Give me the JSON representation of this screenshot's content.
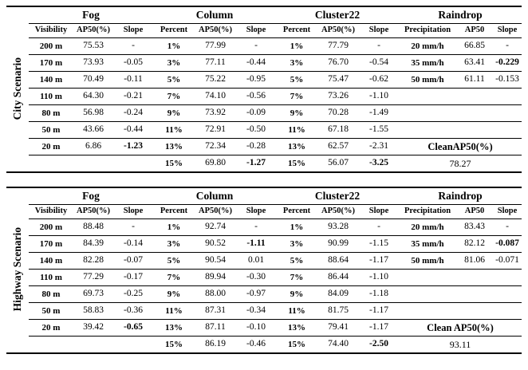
{
  "tables": [
    {
      "scenario": "City Scenario",
      "groups": [
        "Fog",
        "Column",
        "Cluster22",
        "Raindrop"
      ],
      "columns": [
        "Visibility",
        "AP50(%)",
        "Slope",
        "Percent",
        "AP50(%)",
        "Slope",
        "Percent",
        "AP50(%)",
        "Slope",
        "Precipitation",
        "AP50",
        "Slope"
      ],
      "rows": [
        [
          "200 m",
          "75.53",
          "-",
          "1%",
          "77.99",
          "-",
          "1%",
          "77.79",
          "-",
          "20 mm/h",
          "66.85",
          "-"
        ],
        [
          "170 m",
          "73.93",
          "-0.05",
          "3%",
          "77.11",
          "-0.44",
          "3%",
          "76.70",
          "-0.54",
          "35 mm/h",
          "63.41",
          {
            "t": "-0.229",
            "b": true
          }
        ],
        [
          "140 m",
          "70.49",
          "-0.11",
          "5%",
          "75.22",
          "-0.95",
          "5%",
          "75.47",
          "-0.62",
          "50 mm/h",
          "61.11",
          "-0.153"
        ],
        [
          "110 m",
          "64.30",
          "-0.21",
          "7%",
          "74.10",
          "-0.56",
          "7%",
          "73.26",
          "-1.10",
          "",
          "",
          ""
        ],
        [
          "80 m",
          "56.98",
          "-0.24",
          "9%",
          "73.92",
          "-0.09",
          "9%",
          "70.28",
          "-1.49",
          "",
          "",
          ""
        ],
        [
          "50 m",
          "43.66",
          "-0.44",
          "11%",
          "72.91",
          "-0.50",
          "11%",
          "67.18",
          "-1.55",
          "",
          "",
          ""
        ],
        [
          "20 m",
          "6.86",
          {
            "t": "-1.23",
            "b": true
          },
          "13%",
          "72.34",
          "-0.28",
          "13%",
          "62.57",
          "-2.31",
          {
            "t": "CleanAP50(%)",
            "b": true,
            "span": 3,
            "cls": "clean-label"
          }
        ],
        [
          "",
          "",
          "",
          "15%",
          "69.80",
          {
            "t": "-1.27",
            "b": true
          },
          "15%",
          "56.07",
          {
            "t": "-3.25",
            "b": true
          },
          {
            "t": "78.27",
            "span": 3,
            "cls": "clean-value"
          }
        ]
      ]
    },
    {
      "scenario": "Highway Scenario",
      "groups": [
        "Fog",
        "Column",
        "Cluster22",
        "Raindrop"
      ],
      "columns": [
        "Visibility",
        "AP50(%)",
        "Slope",
        "Percent",
        "AP50(%)",
        "Slope",
        "Percent",
        "AP50(%)",
        "Slope",
        "Precipitation",
        "AP50",
        "Slope"
      ],
      "rows": [
        [
          "200 m",
          "88.48",
          "-",
          "1%",
          "92.74",
          "-",
          "1%",
          "93.28",
          "-",
          "20 mm/h",
          "83.43",
          "-"
        ],
        [
          "170 m",
          "84.39",
          "-0.14",
          "3%",
          "90.52",
          {
            "t": "-1.11",
            "b": true
          },
          "3%",
          "90.99",
          "-1.15",
          "35 mm/h",
          "82.12",
          {
            "t": "-0.087",
            "b": true
          }
        ],
        [
          "140 m",
          "82.28",
          "-0.07",
          "5%",
          "90.54",
          "0.01",
          "5%",
          "88.64",
          "-1.17",
          "50 mm/h",
          "81.06",
          "-0.071"
        ],
        [
          "110 m",
          "77.29",
          "-0.17",
          "7%",
          "89.94",
          "-0.30",
          "7%",
          "86.44",
          "-1.10",
          "",
          "",
          ""
        ],
        [
          "80 m",
          "69.73",
          "-0.25",
          "9%",
          "88.00",
          "-0.97",
          "9%",
          "84.09",
          "-1.18",
          "",
          "",
          ""
        ],
        [
          "50 m",
          "58.83",
          "-0.36",
          "11%",
          "87.31",
          "-0.34",
          "11%",
          "81.75",
          "-1.17",
          "",
          "",
          ""
        ],
        [
          "20 m",
          "39.42",
          {
            "t": "-0.65",
            "b": true
          },
          "13%",
          "87.11",
          "-0.10",
          "13%",
          "79.41",
          "-1.17",
          {
            "t": "Clean AP50(%)",
            "b": true,
            "span": 3,
            "cls": "clean-label"
          }
        ],
        [
          "",
          "",
          "",
          "15%",
          "86.19",
          "-0.46",
          "15%",
          "74.40",
          {
            "t": "-2.50",
            "b": true
          },
          {
            "t": "93.11",
            "span": 3,
            "cls": "clean-value"
          }
        ]
      ]
    }
  ]
}
